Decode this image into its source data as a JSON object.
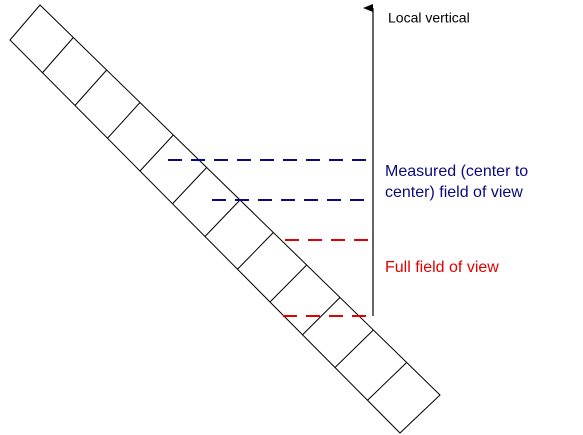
{
  "labels": {
    "vertical": "Local vertical",
    "measured_line1": "Measured (center to",
    "measured_line2": "center) field of view",
    "full": "Full field of view"
  }
}
